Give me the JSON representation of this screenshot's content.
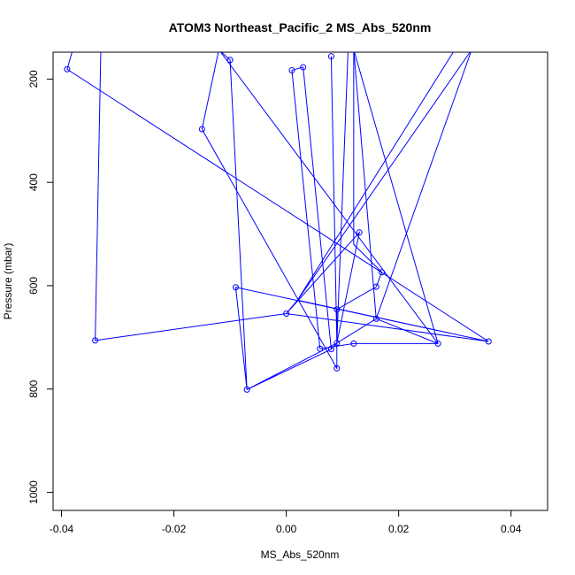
{
  "chart_data": {
    "type": "line",
    "title": "ATOM3 Northeast_Pacific_2 MS_Abs_520nm",
    "xlabel": "MS_Abs_520nm",
    "ylabel": "Pressure (mbar)",
    "xlim": [
      -0.0415,
      0.0465
    ],
    "ylim": [
      1035,
      148
    ],
    "y_reversed": true,
    "xticks": [
      -0.04,
      -0.02,
      0.0,
      0.02,
      0.04
    ],
    "xtick_labels": [
      "-0.04",
      "-0.02",
      "0.00",
      "0.02",
      "0.04"
    ],
    "yticks": [
      200,
      400,
      600,
      800,
      1000
    ],
    "ytick_labels": [
      "200",
      "400",
      "600",
      "800",
      "1000"
    ],
    "grid": false,
    "legend": "none",
    "color": "#0000ff",
    "marker": "open-circle",
    "series": [
      {
        "points": [
          {
            "x": -0.038,
            "y": 143
          },
          {
            "x": -0.039,
            "y": 181
          },
          {
            "x": 0.036,
            "y": 708
          },
          {
            "x": 0.002,
            "y": 628
          },
          {
            "x": 0.0,
            "y": 654
          },
          {
            "x": 0.013,
            "y": 497
          },
          {
            "x": 0.009,
            "y": 711
          },
          {
            "x": 0.008,
            "y": 723
          },
          {
            "x": -0.007,
            "y": 801
          },
          {
            "x": -0.009,
            "y": 603
          },
          {
            "x": 0.036,
            "y": 708
          },
          {
            "x": 0.0,
            "y": 654
          },
          {
            "x": -0.034,
            "y": 706
          },
          {
            "x": -0.033,
            "y": 143
          },
          {
            "x": -0.012,
            "y": 143
          },
          {
            "x": -0.015,
            "y": 297
          },
          {
            "x": 0.009,
            "y": 760
          },
          {
            "x": 0.009,
            "y": 646
          },
          {
            "x": 0.016,
            "y": 602
          },
          {
            "x": 0.017,
            "y": 574
          },
          {
            "x": 0.012,
            "y": 520
          },
          {
            "x": 0.012,
            "y": 143
          },
          {
            "x": 0.011,
            "y": 143
          },
          {
            "x": 0.009,
            "y": 711
          },
          {
            "x": 0.008,
            "y": 723
          },
          {
            "x": 0.003,
            "y": 177
          },
          {
            "x": 0.001,
            "y": 183
          },
          {
            "x": 0.006,
            "y": 722
          },
          {
            "x": 0.012,
            "y": 712
          },
          {
            "x": 0.027,
            "y": 712
          },
          {
            "x": 0.016,
            "y": 664
          },
          {
            "x": 0.009,
            "y": 711
          },
          {
            "x": 0.008,
            "y": 156
          },
          {
            "x": 0.009,
            "y": 711
          },
          {
            "x": -0.007,
            "y": 801
          },
          {
            "x": -0.01,
            "y": 163
          },
          {
            "x": -0.012,
            "y": 143
          },
          {
            "x": 0.027,
            "y": 712
          },
          {
            "x": 0.012,
            "y": 143
          },
          {
            "x": 0.016,
            "y": 664
          },
          {
            "x": 0.033,
            "y": 143
          },
          {
            "x": 0.002,
            "y": 628
          },
          {
            "x": 0.03,
            "y": 143
          }
        ],
        "markers": [
          {
            "x": -0.039,
            "y": 181
          },
          {
            "x": -0.015,
            "y": 297
          },
          {
            "x": -0.01,
            "y": 163
          },
          {
            "x": 0.001,
            "y": 183
          },
          {
            "x": 0.003,
            "y": 177
          },
          {
            "x": 0.008,
            "y": 156
          },
          {
            "x": 0.013,
            "y": 497
          },
          {
            "x": 0.017,
            "y": 574
          },
          {
            "x": 0.016,
            "y": 602
          },
          {
            "x": -0.009,
            "y": 603
          },
          {
            "x": 0.009,
            "y": 646
          },
          {
            "x": 0.0,
            "y": 654
          },
          {
            "x": 0.016,
            "y": 664
          },
          {
            "x": -0.034,
            "y": 706
          },
          {
            "x": 0.036,
            "y": 708
          },
          {
            "x": 0.009,
            "y": 711
          },
          {
            "x": 0.012,
            "y": 712
          },
          {
            "x": 0.027,
            "y": 712
          },
          {
            "x": 0.006,
            "y": 722
          },
          {
            "x": 0.008,
            "y": 723
          },
          {
            "x": 0.009,
            "y": 760
          },
          {
            "x": -0.007,
            "y": 801
          }
        ]
      }
    ]
  }
}
